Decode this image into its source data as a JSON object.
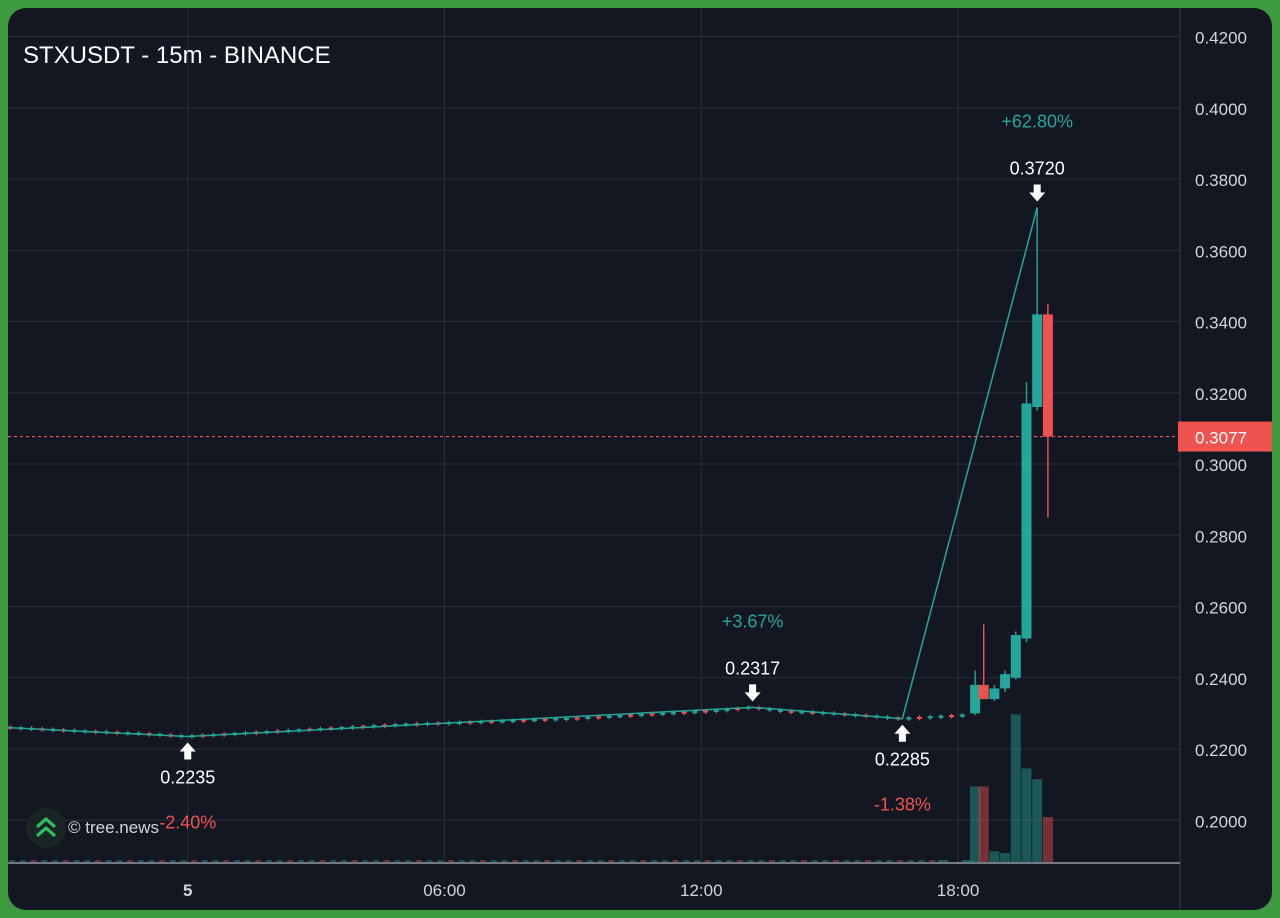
{
  "chart_data": {
    "type": "candlestick",
    "title": "STXUSDT - 15m - BINANCE",
    "ylim": [
      0.188,
      0.428
    ],
    "y_ticks": [
      "0.2000",
      "0.2200",
      "0.2400",
      "0.2600",
      "0.2800",
      "0.3000",
      "0.3200",
      "0.3400",
      "0.3600",
      "0.3800",
      "0.4000",
      "0.4200"
    ],
    "x_ticks": [
      {
        "label": "5",
        "bold": true,
        "hours": 0
      },
      {
        "label": "06:00",
        "bold": false,
        "hours": 6
      },
      {
        "label": "12:00",
        "bold": false,
        "hours": 12
      },
      {
        "label": "18:00",
        "bold": false,
        "hours": 18
      }
    ],
    "x_range_hours": [
      -4.2,
      23
    ],
    "current_price": {
      "value": 0.3077,
      "label": "0.3077"
    },
    "price_path": [
      [
        -4.2,
        0.226
      ],
      [
        -2.5,
        0.225
      ],
      [
        -1.0,
        0.2242
      ],
      [
        0.0,
        0.2235
      ],
      [
        1.5,
        0.2245
      ],
      [
        3.0,
        0.2255
      ],
      [
        5.0,
        0.2268
      ],
      [
        7.0,
        0.2276
      ],
      [
        9.0,
        0.2285
      ],
      [
        11.0,
        0.2298
      ],
      [
        12.5,
        0.2308
      ],
      [
        13.2,
        0.2317
      ],
      [
        14.0,
        0.2305
      ],
      [
        15.0,
        0.23
      ],
      [
        16.0,
        0.2292
      ],
      [
        16.7,
        0.2285
      ],
      [
        17.5,
        0.229
      ],
      [
        18.3,
        0.2295
      ]
    ],
    "candles": [
      {
        "t": 18.4,
        "o": 0.23,
        "h": 0.242,
        "l": 0.2295,
        "c": 0.238
      },
      {
        "t": 18.6,
        "o": 0.238,
        "h": 0.255,
        "l": 0.234,
        "c": 0.234
      },
      {
        "t": 18.85,
        "o": 0.234,
        "h": 0.238,
        "l": 0.2335,
        "c": 0.237
      },
      {
        "t": 19.1,
        "o": 0.237,
        "h": 0.242,
        "l": 0.236,
        "c": 0.241
      },
      {
        "t": 19.35,
        "o": 0.24,
        "h": 0.253,
        "l": 0.2395,
        "c": 0.252
      },
      {
        "t": 19.6,
        "o": 0.251,
        "h": 0.323,
        "l": 0.25,
        "c": 0.317
      },
      {
        "t": 19.85,
        "o": 0.316,
        "h": 0.372,
        "l": 0.315,
        "c": 0.342
      },
      {
        "t": 20.1,
        "o": 0.342,
        "h": 0.345,
        "l": 0.285,
        "c": 0.3077
      }
    ],
    "volume": [
      {
        "t": 17.65,
        "v": 0.002,
        "dir": "up"
      },
      {
        "t": 18.2,
        "v": 0.008,
        "dir": "up"
      },
      {
        "t": 18.4,
        "v": 0.42,
        "dir": "up"
      },
      {
        "t": 18.6,
        "v": 0.42,
        "dir": "down"
      },
      {
        "t": 18.85,
        "v": 0.06,
        "dir": "up"
      },
      {
        "t": 19.1,
        "v": 0.05,
        "dir": "up"
      },
      {
        "t": 19.35,
        "v": 0.82,
        "dir": "up"
      },
      {
        "t": 19.6,
        "v": 0.52,
        "dir": "up"
      },
      {
        "t": 19.85,
        "v": 0.46,
        "dir": "up"
      },
      {
        "t": 20.1,
        "v": 0.25,
        "dir": "down"
      }
    ],
    "zigzag": [
      {
        "t": -4.2,
        "p": 0.226
      },
      {
        "t": 0.0,
        "p": 0.2235
      },
      {
        "t": 13.2,
        "p": 0.2317
      },
      {
        "t": 16.7,
        "p": 0.2285
      },
      {
        "t": 19.85,
        "p": 0.372
      }
    ],
    "pivots": [
      {
        "t": 0.0,
        "p": 0.2235,
        "label": "0.2235",
        "dir": "up"
      },
      {
        "t": 13.2,
        "p": 0.2317,
        "label": "0.2317",
        "dir": "down"
      },
      {
        "t": 16.7,
        "p": 0.2285,
        "label": "0.2285",
        "dir": "up"
      },
      {
        "t": 19.85,
        "p": 0.372,
        "label": "0.3720",
        "dir": "down"
      }
    ],
    "percent_labels": [
      {
        "text": "-2.40%",
        "color": "red",
        "anchor_t": 0.0,
        "anchor_p": 0.2235
      },
      {
        "text": "+3.67%",
        "color": "green",
        "anchor_t": 13.2,
        "anchor_p": 0.2317
      },
      {
        "text": "-1.38%",
        "color": "red",
        "anchor_t": 16.7,
        "anchor_p": 0.2285
      },
      {
        "text": "+62.80%",
        "color": "green",
        "anchor_t": 19.85,
        "anchor_p": 0.372
      }
    ],
    "colors": {
      "up": "#26a69a",
      "down": "#ef5350",
      "grid": "#2a2e39",
      "axis_text": "#d1d4dc",
      "background": "#131722",
      "zigzag": "#26a69a",
      "pct_green": "#26a69a",
      "pct_red": "#ef5350",
      "pivot_text": "#ffffff"
    }
  },
  "watermark": {
    "text": "© tree.news",
    "logo_icon": "double-chevron-up-icon",
    "logo_color": "#2ebd5f"
  }
}
